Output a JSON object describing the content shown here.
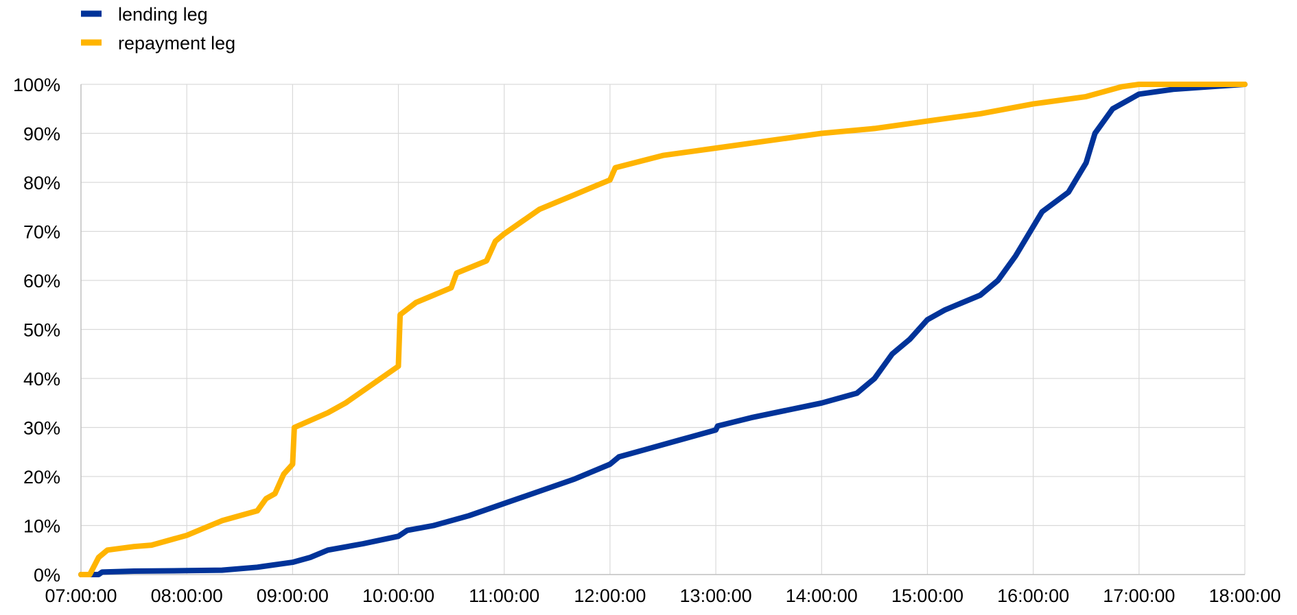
{
  "chart_data": {
    "type": "line",
    "title": "",
    "xlabel": "",
    "ylabel": "",
    "x_range": [
      "07:00:00",
      "18:00:00"
    ],
    "ylim": [
      0,
      100
    ],
    "x_tick_labels": [
      "07:00:00",
      "08:00:00",
      "09:00:00",
      "10:00:00",
      "11:00:00",
      "12:00:00",
      "13:00:00",
      "14:00:00",
      "15:00:00",
      "16:00:00",
      "17:00:00",
      "18:00:00"
    ],
    "y_tick_labels": [
      "0%",
      "10%",
      "20%",
      "30%",
      "40%",
      "50%",
      "60%",
      "70%",
      "80%",
      "90%",
      "100%"
    ],
    "y_ticks": [
      0,
      10,
      20,
      30,
      40,
      50,
      60,
      70,
      80,
      90,
      100
    ],
    "grid": "on",
    "legend_position": "top-left",
    "series": [
      {
        "name": "lending leg",
        "color": "#003399",
        "points": [
          [
            "07:00:00",
            0
          ],
          [
            "07:10:00",
            0
          ],
          [
            "07:12:00",
            0.5
          ],
          [
            "07:30:00",
            0.7
          ],
          [
            "08:00:00",
            0.8
          ],
          [
            "08:20:00",
            0.9
          ],
          [
            "08:40:00",
            1.5
          ],
          [
            "09:00:00",
            2.5
          ],
          [
            "09:10:00",
            3.5
          ],
          [
            "09:20:00",
            5
          ],
          [
            "09:40:00",
            6.3
          ],
          [
            "10:00:00",
            7.8
          ],
          [
            "10:05:00",
            9
          ],
          [
            "10:20:00",
            10
          ],
          [
            "10:40:00",
            12
          ],
          [
            "11:00:00",
            14.5
          ],
          [
            "11:20:00",
            17
          ],
          [
            "11:40:00",
            19.5
          ],
          [
            "12:00:00",
            22.5
          ],
          [
            "12:05:00",
            24
          ],
          [
            "12:20:00",
            25.5
          ],
          [
            "12:40:00",
            27.5
          ],
          [
            "13:00:00",
            29.5
          ],
          [
            "13:01:00",
            30.3
          ],
          [
            "13:20:00",
            32
          ],
          [
            "13:40:00",
            33.5
          ],
          [
            "14:00:00",
            35
          ],
          [
            "14:20:00",
            37
          ],
          [
            "14:30:00",
            40
          ],
          [
            "14:40:00",
            45
          ],
          [
            "14:50:00",
            48
          ],
          [
            "15:00:00",
            52
          ],
          [
            "15:10:00",
            54
          ],
          [
            "15:30:00",
            57
          ],
          [
            "15:40:00",
            60
          ],
          [
            "15:50:00",
            65
          ],
          [
            "16:00:00",
            71
          ],
          [
            "16:05:00",
            74
          ],
          [
            "16:20:00",
            78
          ],
          [
            "16:30:00",
            84
          ],
          [
            "16:35:00",
            90
          ],
          [
            "16:45:00",
            95
          ],
          [
            "17:00:00",
            98
          ],
          [
            "17:20:00",
            99
          ],
          [
            "18:00:00",
            100
          ]
        ]
      },
      {
        "name": "repayment leg",
        "color": "#ffb400",
        "points": [
          [
            "07:00:00",
            0
          ],
          [
            "07:05:00",
            0
          ],
          [
            "07:10:00",
            3.5
          ],
          [
            "07:15:00",
            5
          ],
          [
            "07:30:00",
            5.7
          ],
          [
            "07:40:00",
            6
          ],
          [
            "08:00:00",
            8
          ],
          [
            "08:10:00",
            9.5
          ],
          [
            "08:20:00",
            11
          ],
          [
            "08:40:00",
            13
          ],
          [
            "08:45:00",
            15.5
          ],
          [
            "08:50:00",
            16.5
          ],
          [
            "08:55:00",
            20.5
          ],
          [
            "09:00:00",
            22.5
          ],
          [
            "09:01:00",
            30
          ],
          [
            "09:20:00",
            33
          ],
          [
            "09:30:00",
            35
          ],
          [
            "09:40:00",
            37.5
          ],
          [
            "10:00:00",
            42.5
          ],
          [
            "10:01:00",
            53
          ],
          [
            "10:10:00",
            55.5
          ],
          [
            "10:30:00",
            58.5
          ],
          [
            "10:33:00",
            61.5
          ],
          [
            "10:50:00",
            64
          ],
          [
            "10:55:00",
            68
          ],
          [
            "11:00:00",
            69.5
          ],
          [
            "11:10:00",
            72
          ],
          [
            "11:20:00",
            74.5
          ],
          [
            "11:30:00",
            76
          ],
          [
            "11:40:00",
            77.5
          ],
          [
            "11:50:00",
            79
          ],
          [
            "12:00:00",
            80.5
          ],
          [
            "12:03:00",
            83
          ],
          [
            "12:30:00",
            85.5
          ],
          [
            "13:00:00",
            87
          ],
          [
            "13:30:00",
            88.5
          ],
          [
            "14:00:00",
            90
          ],
          [
            "14:30:00",
            91
          ],
          [
            "15:00:00",
            92.5
          ],
          [
            "15:30:00",
            94
          ],
          [
            "16:00:00",
            96
          ],
          [
            "16:30:00",
            97.5
          ],
          [
            "16:50:00",
            99.5
          ],
          [
            "17:00:00",
            100
          ],
          [
            "18:00:00",
            100
          ]
        ]
      }
    ]
  }
}
